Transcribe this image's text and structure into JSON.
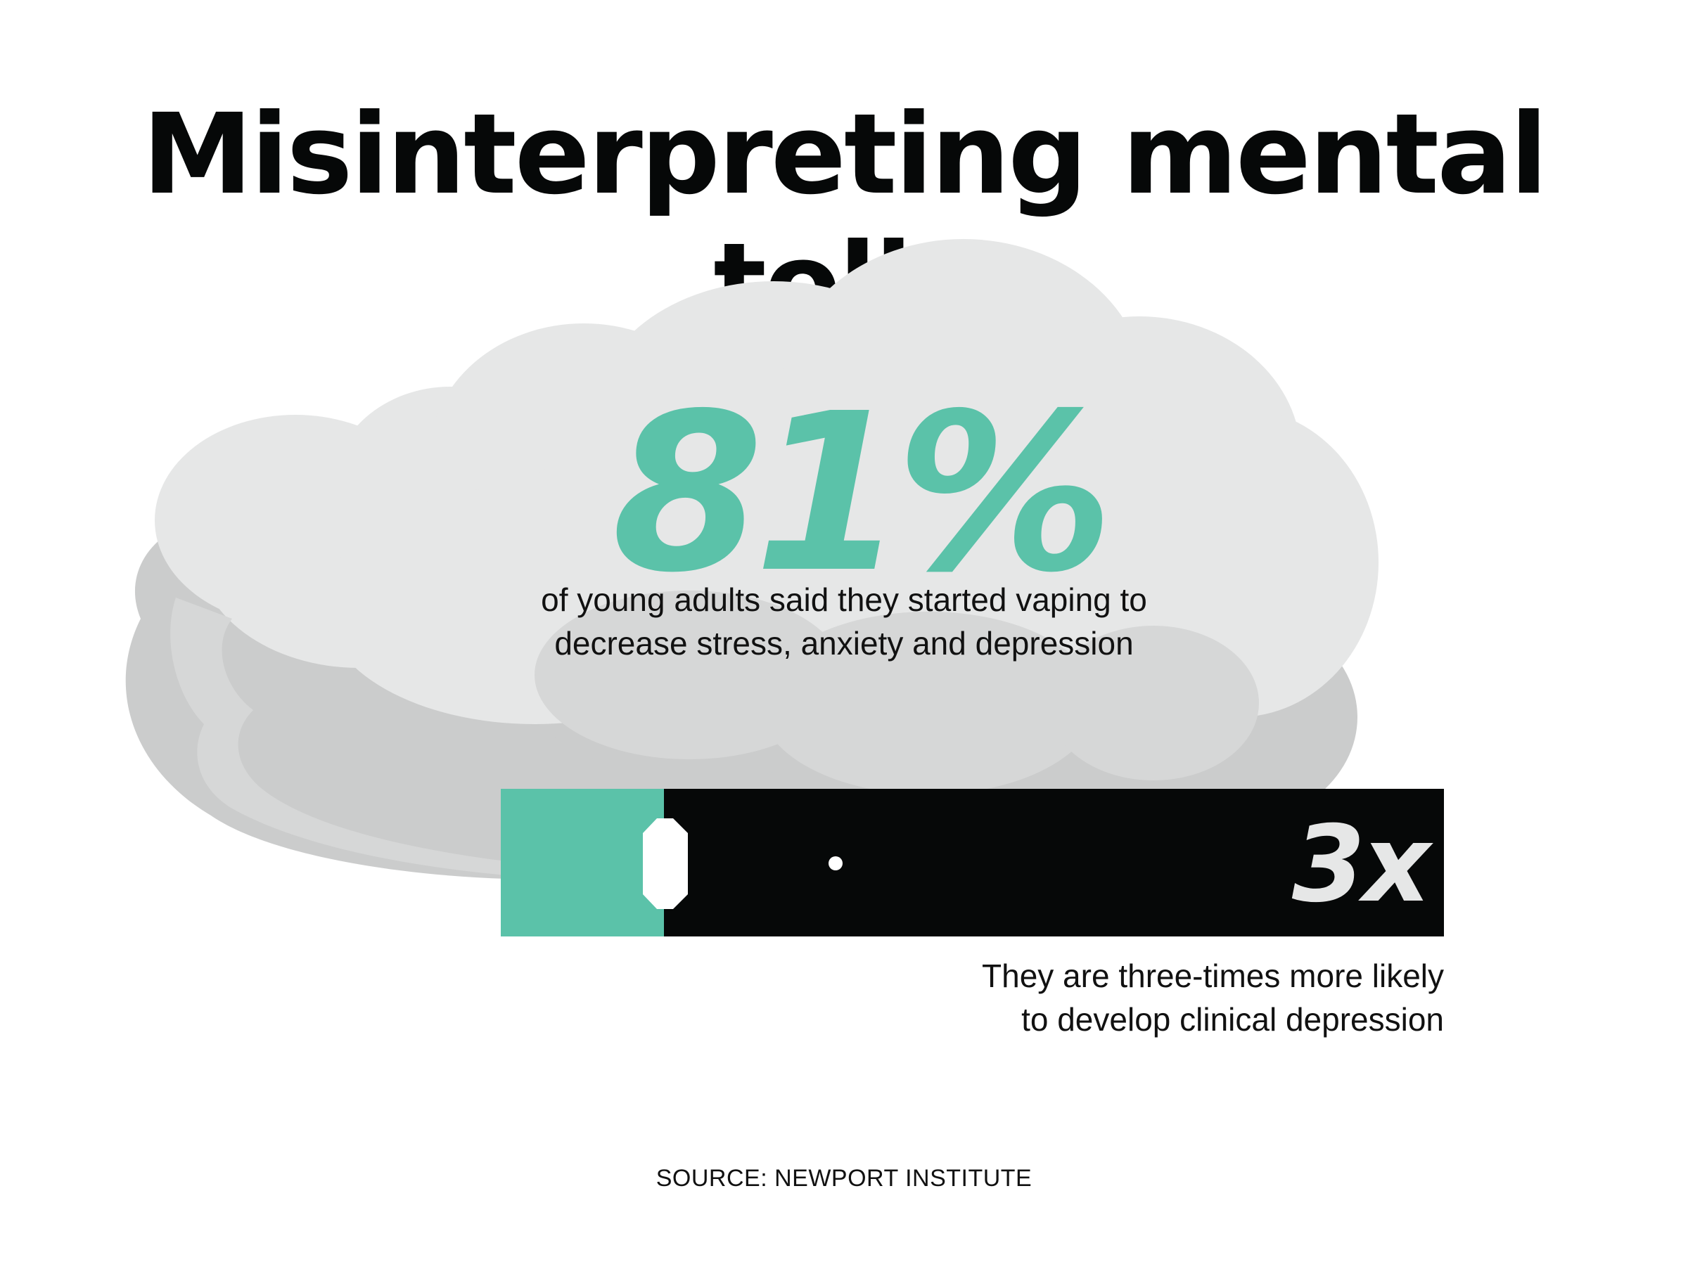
{
  "title": "Misinterpreting mental tolls",
  "stat": {
    "value": "81%",
    "description_line1": "of young adults said they started vaping to",
    "description_line2": "decrease stress, anxiety and depression"
  },
  "multiplier": {
    "value": "3x",
    "description_line1": "They are three-times more likely",
    "description_line2": "to develop clinical depression"
  },
  "source": "SOURCE: NEWPORT INSTITUTE",
  "colors": {
    "accent": "#5bc2a9",
    "dark": "#060808",
    "cloud_light": "#e6e7e7",
    "cloud_shadow": "#cbcccc",
    "multiplier_text": "#e6e7e7"
  },
  "icons": {
    "cloud": "vapor-cloud-icon",
    "device": "vape-device-icon"
  }
}
